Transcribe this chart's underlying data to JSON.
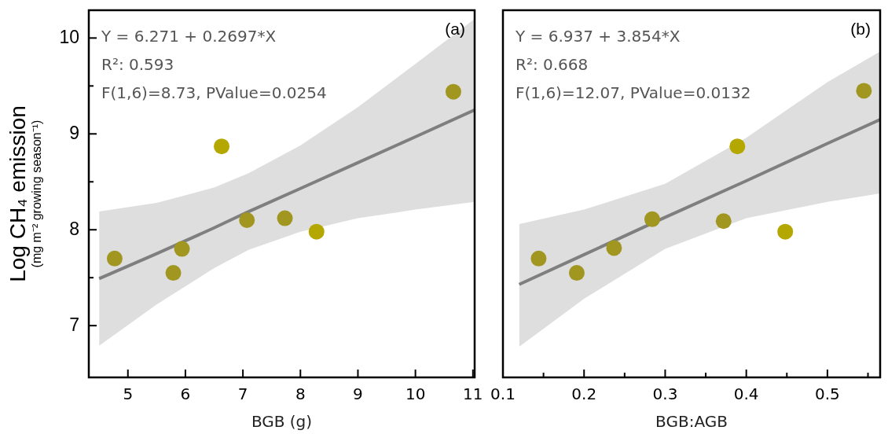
{
  "chart_data": [
    {
      "type": "scatter",
      "title": "(a)",
      "xlabel": "BGB (g)",
      "ylabel": "Log CH₄ emission\n(mg m⁻² growing season⁻¹)",
      "annotations": [
        "Y = 6.271 + 0.2697*X",
        "R²: 0.593",
        "F(1,6)=8.73, PValue=0.0254"
      ],
      "xlim": [
        4.32,
        11.03
      ],
      "xticks": [
        5,
        6,
        7,
        8,
        9,
        10,
        11
      ],
      "ylim": [
        6.46,
        10.29
      ],
      "yticks": [
        7,
        {
          "value": 7.5,
          "label": null
        },
        8,
        {
          "value": 8.5,
          "label": null
        },
        9,
        {
          "value": 9.5,
          "label": null
        },
        10
      ],
      "series": [
        {
          "marker": "circle",
          "x": [
            4.77,
            5.79,
            5.94,
            6.63,
            7.07,
            7.73,
            8.28,
            10.66
          ],
          "values": [
            7.7,
            7.55,
            7.8,
            8.87,
            8.1,
            8.12,
            7.98,
            9.44
          ],
          "colors": [
            "#a09620",
            "#a09620",
            "#a09620",
            "#b4a800",
            "#a09620",
            "#a09620",
            "#b4a800",
            "#a09620"
          ]
        },
        {
          "type": "line",
          "marker": "none",
          "color": "#7f7f7f",
          "x": [
            4.5,
            5.5,
            6.5,
            7.1,
            8,
            9,
            10,
            11.03
          ],
          "values": [
            7.49,
            7.75,
            8.02,
            8.19,
            8.43,
            8.7,
            8.97,
            9.25
          ],
          "lower": [
            6.79,
            7.22,
            7.6,
            7.79,
            7.98,
            8.12,
            8.21,
            8.29
          ],
          "upper": [
            8.19,
            8.28,
            8.44,
            8.59,
            8.88,
            9.28,
            9.73,
            10.2
          ]
        }
      ]
    },
    {
      "type": "scatter",
      "title": "(b)",
      "xlabel": "BGB:AGB",
      "tick_labels": "x",
      "annotations": [
        "Y = 6.937 + 3.854*X",
        "R²: 0.668",
        "F(1,6)=12.07, PValue=0.0132"
      ],
      "xlim": [
        0.1,
        0.565
      ],
      "xticks": [
        0.1,
        {
          "value": 0.15,
          "label": null
        },
        0.2,
        {
          "value": 0.25,
          "label": null
        },
        0.3,
        {
          "value": 0.35,
          "label": null
        },
        0.4,
        {
          "value": 0.45,
          "label": null
        },
        0.5,
        {
          "value": 0.55,
          "label": null
        }
      ],
      "ylim": [
        6.46,
        10.29
      ],
      "series": [
        {
          "marker": "circle",
          "x": [
            0.144,
            0.191,
            0.237,
            0.284,
            0.372,
            0.389,
            0.448,
            0.545
          ],
          "values": [
            7.7,
            7.55,
            7.81,
            8.11,
            8.09,
            8.87,
            7.98,
            9.45
          ],
          "colors": [
            "#a09620",
            "#a09620",
            "#a09620",
            "#a09620",
            "#a09620",
            "#b4a800",
            "#b4a800",
            "#a09620"
          ]
        },
        {
          "type": "line",
          "marker": "none",
          "color": "#7f7f7f",
          "x": [
            0.12,
            0.2,
            0.3,
            0.4,
            0.5,
            0.565
          ],
          "values": [
            7.43,
            7.74,
            8.13,
            8.51,
            8.9,
            9.15
          ],
          "lower": [
            6.78,
            7.28,
            7.8,
            8.12,
            8.29,
            8.38
          ],
          "upper": [
            8.06,
            8.21,
            8.48,
            8.96,
            9.54,
            9.86
          ]
        }
      ]
    }
  ]
}
